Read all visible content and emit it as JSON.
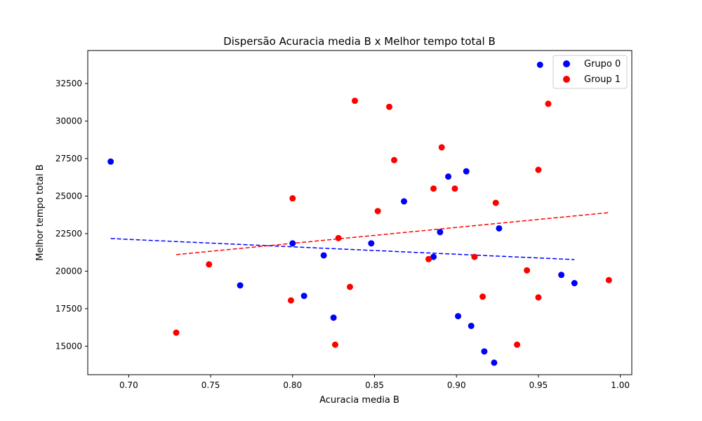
{
  "chart_data": {
    "type": "scatter",
    "title": "Dispersão Acuracia media B x Melhor tempo total B",
    "xlabel": "Acuracia media B",
    "ylabel": "Melhor tempo total B",
    "xlim": [
      0.675,
      1.007
    ],
    "ylim": [
      13100,
      34700
    ],
    "xticks": [
      0.7,
      0.75,
      0.8,
      0.85,
      0.9,
      0.95,
      1.0
    ],
    "xtick_labels": [
      "0.70",
      "0.75",
      "0.80",
      "0.85",
      "0.90",
      "0.95",
      "1.00"
    ],
    "yticks": [
      15000,
      17500,
      20000,
      22500,
      25000,
      27500,
      30000,
      32500
    ],
    "ytick_labels": [
      "15000",
      "17500",
      "20000",
      "22500",
      "25000",
      "27500",
      "30000",
      "32500"
    ],
    "grid": false,
    "legend_position": "top-right",
    "series": [
      {
        "name": "Grupo 0",
        "color": "#0000ff",
        "points": [
          [
            0.689,
            27300
          ],
          [
            0.768,
            19050
          ],
          [
            0.8,
            21850
          ],
          [
            0.807,
            18350
          ],
          [
            0.819,
            21050
          ],
          [
            0.825,
            16900
          ],
          [
            0.848,
            21850
          ],
          [
            0.868,
            24650
          ],
          [
            0.886,
            20950
          ],
          [
            0.89,
            22600
          ],
          [
            0.895,
            26300
          ],
          [
            0.901,
            17000
          ],
          [
            0.906,
            26650
          ],
          [
            0.909,
            16350
          ],
          [
            0.917,
            14650
          ],
          [
            0.923,
            13900
          ],
          [
            0.926,
            22850
          ],
          [
            0.951,
            33750
          ],
          [
            0.964,
            19750
          ],
          [
            0.972,
            19200
          ]
        ],
        "trend": {
          "x": [
            0.689,
            0.972
          ],
          "y": [
            22170,
            20770
          ],
          "style": "dashed"
        }
      },
      {
        "name": "Group 1",
        "color": "#ff0000",
        "points": [
          [
            0.729,
            15900
          ],
          [
            0.749,
            20450
          ],
          [
            0.799,
            18050
          ],
          [
            0.8,
            24850
          ],
          [
            0.826,
            15100
          ],
          [
            0.828,
            22200
          ],
          [
            0.835,
            18950
          ],
          [
            0.838,
            31350
          ],
          [
            0.852,
            24000
          ],
          [
            0.859,
            30950
          ],
          [
            0.862,
            27400
          ],
          [
            0.883,
            20800
          ],
          [
            0.886,
            25500
          ],
          [
            0.891,
            28250
          ],
          [
            0.899,
            25500
          ],
          [
            0.911,
            20950
          ],
          [
            0.916,
            18300
          ],
          [
            0.924,
            24550
          ],
          [
            0.937,
            15100
          ],
          [
            0.943,
            20050
          ],
          [
            0.95,
            18250
          ],
          [
            0.95,
            26750
          ],
          [
            0.956,
            31150
          ],
          [
            0.993,
            19400
          ]
        ],
        "trend": {
          "x": [
            0.729,
            0.993
          ],
          "y": [
            21100,
            23900
          ],
          "style": "dashed"
        }
      }
    ]
  }
}
